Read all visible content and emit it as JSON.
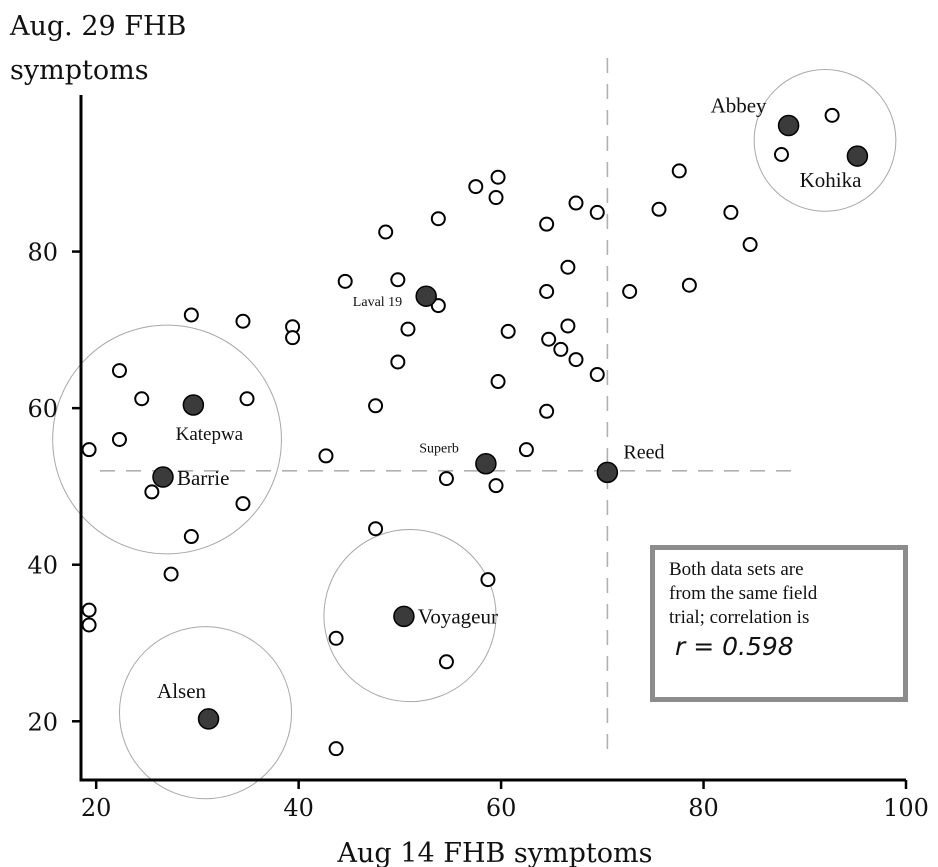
{
  "chart_data": {
    "type": "scatter",
    "title": "",
    "ylabel_lines": [
      "Aug. 29 FHB",
      "symptoms"
    ],
    "xlabel": "Aug 14 FHB symptoms",
    "xlim": [
      18.5,
      100
    ],
    "ylim": [
      12.5,
      100
    ],
    "xticks": [
      20,
      40,
      60,
      80,
      100
    ],
    "yticks": [
      20,
      40,
      60,
      80
    ],
    "grid": false,
    "reference_lines": {
      "x": 70.5,
      "y": 52
    },
    "points": [
      {
        "x": 19.3,
        "y": 54.7
      },
      {
        "x": 19.3,
        "y": 34.2
      },
      {
        "x": 19.3,
        "y": 32.3
      },
      {
        "x": 22.3,
        "y": 64.8
      },
      {
        "x": 22.3,
        "y": 56.0
      },
      {
        "x": 24.5,
        "y": 61.2
      },
      {
        "x": 25.5,
        "y": 49.3
      },
      {
        "x": 27.4,
        "y": 38.8
      },
      {
        "x": 29.4,
        "y": 71.9
      },
      {
        "x": 29.4,
        "y": 43.6
      },
      {
        "x": 34.5,
        "y": 71.1
      },
      {
        "x": 34.5,
        "y": 47.8
      },
      {
        "x": 34.9,
        "y": 61.2
      },
      {
        "x": 39.4,
        "y": 70.4
      },
      {
        "x": 39.4,
        "y": 69.0
      },
      {
        "x": 42.7,
        "y": 53.9
      },
      {
        "x": 43.7,
        "y": 30.6
      },
      {
        "x": 43.7,
        "y": 16.5
      },
      {
        "x": 44.6,
        "y": 76.2
      },
      {
        "x": 47.6,
        "y": 60.3
      },
      {
        "x": 47.6,
        "y": 44.6
      },
      {
        "x": 48.6,
        "y": 82.5
      },
      {
        "x": 49.8,
        "y": 76.4
      },
      {
        "x": 49.8,
        "y": 65.9
      },
      {
        "x": 50.8,
        "y": 70.1
      },
      {
        "x": 53.8,
        "y": 84.2
      },
      {
        "x": 53.8,
        "y": 73.1
      },
      {
        "x": 54.6,
        "y": 51.0
      },
      {
        "x": 54.6,
        "y": 27.6
      },
      {
        "x": 57.5,
        "y": 88.3
      },
      {
        "x": 58.7,
        "y": 38.1
      },
      {
        "x": 59.5,
        "y": 86.9
      },
      {
        "x": 59.5,
        "y": 50.1
      },
      {
        "x": 59.7,
        "y": 89.5
      },
      {
        "x": 59.7,
        "y": 63.4
      },
      {
        "x": 60.7,
        "y": 69.8
      },
      {
        "x": 62.5,
        "y": 54.7
      },
      {
        "x": 64.5,
        "y": 83.5
      },
      {
        "x": 64.5,
        "y": 74.9
      },
      {
        "x": 64.5,
        "y": 59.6
      },
      {
        "x": 64.7,
        "y": 68.8
      },
      {
        "x": 65.9,
        "y": 67.5
      },
      {
        "x": 66.6,
        "y": 78.0
      },
      {
        "x": 66.6,
        "y": 70.5
      },
      {
        "x": 67.4,
        "y": 86.2
      },
      {
        "x": 67.4,
        "y": 66.2
      },
      {
        "x": 69.5,
        "y": 85.0
      },
      {
        "x": 69.5,
        "y": 64.3
      },
      {
        "x": 72.7,
        "y": 74.9
      },
      {
        "x": 75.6,
        "y": 85.4
      },
      {
        "x": 77.6,
        "y": 90.3
      },
      {
        "x": 78.6,
        "y": 75.7
      },
      {
        "x": 82.7,
        "y": 85.0
      },
      {
        "x": 84.6,
        "y": 80.9
      },
      {
        "x": 87.7,
        "y": 92.4
      },
      {
        "x": 92.7,
        "y": 97.4
      }
    ],
    "highlighted": [
      {
        "name": "Abbey",
        "x": 88.4,
        "y": 96.1
      },
      {
        "name": "Kohika",
        "x": 95.2,
        "y": 92.2
      },
      {
        "name": "Laval 19",
        "x": 52.6,
        "y": 74.3
      },
      {
        "name": "Katepwa",
        "x": 29.6,
        "y": 60.4
      },
      {
        "name": "Barrie",
        "x": 26.6,
        "y": 51.2
      },
      {
        "name": "Superb",
        "x": 58.5,
        "y": 52.9
      },
      {
        "name": "Reed",
        "x": 70.5,
        "y": 51.8
      },
      {
        "name": "Voyageur",
        "x": 50.4,
        "y": 33.4
      },
      {
        "name": "Alsen",
        "x": 31.1,
        "y": 20.3
      }
    ],
    "circles": [
      {
        "cx": 92.0,
        "cy": 94.2,
        "radius": 7.0
      },
      {
        "cx": 27.0,
        "cy": 56.0,
        "radius": 11.3
      },
      {
        "cx": 51.0,
        "cy": 33.5,
        "radius": 8.5
      },
      {
        "cx": 30.8,
        "cy": 21.1,
        "radius": 8.5
      }
    ]
  },
  "annotation": {
    "lines": [
      "Both data sets are",
      "from the same field",
      "trial; correlation is"
    ],
    "r_text": "r = 0.598"
  }
}
